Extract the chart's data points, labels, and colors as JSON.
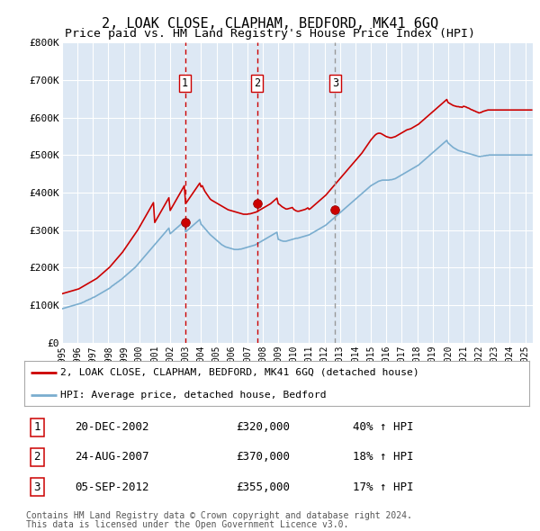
{
  "title": "2, LOAK CLOSE, CLAPHAM, BEDFORD, MK41 6GQ",
  "subtitle": "Price paid vs. HM Land Registry's House Price Index (HPI)",
  "legend_line1": "2, LOAK CLOSE, CLAPHAM, BEDFORD, MK41 6GQ (detached house)",
  "legend_line2": "HPI: Average price, detached house, Bedford",
  "footer_line1": "Contains HM Land Registry data © Crown copyright and database right 2024.",
  "footer_line2": "This data is licensed under the Open Government Licence v3.0.",
  "sales": [
    {
      "num": 1,
      "date": "20-DEC-2002",
      "date_x": 2002.96,
      "price": 320000,
      "pct": "40%",
      "dir": "↑",
      "vline_color": "#cc0000",
      "vline_style": "--"
    },
    {
      "num": 2,
      "date": "24-AUG-2007",
      "date_x": 2007.64,
      "price": 370000,
      "pct": "18%",
      "dir": "↑",
      "vline_color": "#cc0000",
      "vline_style": "--"
    },
    {
      "num": 3,
      "date": "05-SEP-2012",
      "date_x": 2012.68,
      "price": 355000,
      "pct": "17%",
      "dir": "↑",
      "vline_color": "#999999",
      "vline_style": "--"
    }
  ],
  "ylim": [
    0,
    800000
  ],
  "xlim_start": 1995.0,
  "xlim_end": 2025.5,
  "yticks": [
    0,
    100000,
    200000,
    300000,
    400000,
    500000,
    600000,
    700000,
    800000
  ],
  "ytick_labels": [
    "£0",
    "£100K",
    "£200K",
    "£300K",
    "£400K",
    "£500K",
    "£600K",
    "£700K",
    "£800K"
  ],
  "red_color": "#cc0000",
  "blue_color": "#7aadcf",
  "bg_color": "#dde8f4",
  "grid_color": "#ffffff",
  "title_fontsize": 11,
  "subtitle_fontsize": 9.5,
  "axis_fontsize": 8,
  "red_monthly": {
    "start_year": 1995,
    "start_month": 1,
    "values": [
      130000,
      131000,
      132000,
      133000,
      134000,
      135000,
      136000,
      137000,
      138000,
      139000,
      140000,
      141000,
      142000,
      143000,
      145000,
      147000,
      149000,
      151000,
      153000,
      155000,
      157000,
      159000,
      161000,
      163000,
      165000,
      167000,
      169000,
      171000,
      174000,
      177000,
      180000,
      183000,
      186000,
      189000,
      192000,
      195000,
      198000,
      201000,
      205000,
      209000,
      213000,
      217000,
      221000,
      225000,
      229000,
      233000,
      237000,
      241000,
      246000,
      251000,
      256000,
      261000,
      266000,
      271000,
      276000,
      281000,
      286000,
      291000,
      296000,
      301000,
      307000,
      313000,
      319000,
      325000,
      331000,
      337000,
      343000,
      349000,
      355000,
      361000,
      367000,
      373000,
      320000,
      326000,
      332000,
      338000,
      344000,
      350000,
      356000,
      362000,
      368000,
      374000,
      380000,
      386000,
      352000,
      358000,
      364000,
      370000,
      376000,
      382000,
      388000,
      394000,
      400000,
      406000,
      412000,
      418000,
      370000,
      375000,
      380000,
      385000,
      390000,
      395000,
      400000,
      405000,
      410000,
      415000,
      420000,
      425000,
      415000,
      418000,
      410000,
      403000,
      398000,
      393000,
      388000,
      383000,
      380000,
      378000,
      376000,
      374000,
      372000,
      370000,
      368000,
      366000,
      364000,
      362000,
      360000,
      358000,
      356000,
      354000,
      353000,
      352000,
      351000,
      350000,
      349000,
      348000,
      347000,
      346000,
      345000,
      344000,
      343000,
      342000,
      342000,
      342000,
      342000,
      343000,
      343000,
      344000,
      345000,
      346000,
      347000,
      348000,
      350000,
      352000,
      354000,
      356000,
      358000,
      360000,
      362000,
      364000,
      366000,
      368000,
      370000,
      373000,
      376000,
      379000,
      382000,
      385000,
      370000,
      368000,
      365000,
      362000,
      360000,
      358000,
      356000,
      356000,
      357000,
      358000,
      359000,
      360000,
      355000,
      353000,
      351000,
      350000,
      350000,
      351000,
      352000,
      353000,
      354000,
      355000,
      357000,
      359000,
      355000,
      357000,
      360000,
      363000,
      366000,
      369000,
      372000,
      375000,
      378000,
      381000,
      384000,
      387000,
      390000,
      393000,
      397000,
      401000,
      405000,
      409000,
      413000,
      417000,
      421000,
      425000,
      429000,
      433000,
      437000,
      441000,
      445000,
      449000,
      453000,
      457000,
      461000,
      465000,
      469000,
      473000,
      477000,
      481000,
      485000,
      489000,
      493000,
      497000,
      501000,
      505000,
      510000,
      515000,
      520000,
      525000,
      530000,
      535000,
      540000,
      544000,
      548000,
      552000,
      555000,
      557000,
      558000,
      558000,
      557000,
      555000,
      553000,
      551000,
      549000,
      548000,
      547000,
      546000,
      546000,
      547000,
      548000,
      549000,
      551000,
      553000,
      555000,
      557000,
      559000,
      561000,
      563000,
      565000,
      567000,
      568000,
      569000,
      570000,
      572000,
      574000,
      576000,
      578000,
      580000,
      582000,
      585000,
      588000,
      591000,
      594000,
      597000,
      600000,
      603000,
      606000,
      609000,
      612000,
      615000,
      618000,
      621000,
      624000,
      627000,
      630000,
      633000,
      636000,
      639000,
      642000,
      645000,
      648000,
      640000,
      638000,
      636000,
      634000,
      632000,
      631000,
      630000,
      629000,
      629000,
      628000,
      628000,
      627000,
      630000,
      629000,
      628000,
      626000,
      625000,
      623000,
      621000,
      620000,
      618000,
      617000,
      615000,
      614000,
      612000,
      613000,
      614000,
      616000,
      617000,
      618000,
      619000,
      620000,
      620000,
      620000,
      620000,
      620000,
      620000,
      620000,
      620000,
      620000,
      620000,
      620000,
      620000,
      620000,
      620000,
      620000,
      620000,
      620000,
      620000,
      620000,
      620000,
      620000,
      620000,
      620000,
      620000,
      620000,
      620000,
      620000,
      620000,
      620000,
      620000,
      620000,
      620000,
      620000,
      620000,
      620000
    ]
  },
  "blue_monthly": {
    "start_year": 1995,
    "start_month": 1,
    "values": [
      90000,
      91000,
      92000,
      93000,
      94000,
      95000,
      96000,
      97000,
      98000,
      99000,
      100000,
      101000,
      102000,
      103000,
      104000,
      105000,
      107000,
      108000,
      110000,
      112000,
      113000,
      115000,
      116000,
      118000,
      120000,
      121000,
      123000,
      125000,
      127000,
      129000,
      131000,
      133000,
      135000,
      137000,
      139000,
      141000,
      143000,
      145000,
      148000,
      151000,
      153000,
      156000,
      158000,
      161000,
      163000,
      166000,
      168000,
      171000,
      174000,
      177000,
      180000,
      183000,
      186000,
      189000,
      192000,
      195000,
      198000,
      201000,
      205000,
      209000,
      213000,
      217000,
      221000,
      225000,
      229000,
      233000,
      237000,
      241000,
      245000,
      249000,
      253000,
      257000,
      261000,
      265000,
      269000,
      273000,
      277000,
      281000,
      285000,
      289000,
      293000,
      297000,
      301000,
      305000,
      290000,
      293000,
      296000,
      299000,
      302000,
      305000,
      308000,
      311000,
      314000,
      317000,
      320000,
      323000,
      295000,
      298000,
      301000,
      304000,
      307000,
      310000,
      313000,
      316000,
      319000,
      322000,
      325000,
      328000,
      315000,
      312000,
      308000,
      304000,
      300000,
      296000,
      292000,
      288000,
      285000,
      282000,
      279000,
      276000,
      273000,
      270000,
      267000,
      264000,
      261000,
      259000,
      257000,
      255000,
      254000,
      253000,
      252000,
      251000,
      250000,
      249000,
      248000,
      248000,
      248000,
      248000,
      249000,
      249000,
      250000,
      251000,
      252000,
      253000,
      254000,
      255000,
      256000,
      257000,
      258000,
      259000,
      260000,
      262000,
      264000,
      266000,
      268000,
      270000,
      272000,
      274000,
      276000,
      278000,
      280000,
      282000,
      284000,
      286000,
      288000,
      290000,
      292000,
      294000,
      275000,
      274000,
      272000,
      271000,
      270000,
      270000,
      270000,
      271000,
      272000,
      273000,
      274000,
      275000,
      276000,
      277000,
      278000,
      278000,
      279000,
      280000,
      281000,
      282000,
      283000,
      284000,
      285000,
      286000,
      287000,
      289000,
      291000,
      293000,
      295000,
      297000,
      299000,
      301000,
      303000,
      305000,
      307000,
      309000,
      311000,
      313000,
      316000,
      319000,
      322000,
      325000,
      328000,
      331000,
      334000,
      337000,
      340000,
      343000,
      346000,
      349000,
      352000,
      355000,
      358000,
      361000,
      364000,
      367000,
      370000,
      373000,
      376000,
      379000,
      382000,
      385000,
      388000,
      391000,
      394000,
      397000,
      400000,
      403000,
      406000,
      409000,
      412000,
      415000,
      418000,
      420000,
      422000,
      424000,
      426000,
      428000,
      430000,
      431000,
      432000,
      433000,
      433000,
      433000,
      433000,
      433000,
      433000,
      434000,
      434000,
      435000,
      436000,
      437000,
      439000,
      441000,
      443000,
      445000,
      447000,
      449000,
      451000,
      453000,
      455000,
      457000,
      459000,
      461000,
      463000,
      465000,
      467000,
      469000,
      471000,
      473000,
      476000,
      479000,
      482000,
      485000,
      488000,
      491000,
      494000,
      497000,
      500000,
      503000,
      506000,
      509000,
      512000,
      515000,
      518000,
      521000,
      524000,
      527000,
      530000,
      533000,
      536000,
      539000,
      532000,
      529000,
      526000,
      523000,
      520000,
      518000,
      516000,
      514000,
      512000,
      511000,
      510000,
      509000,
      508000,
      507000,
      506000,
      505000,
      504000,
      503000,
      502000,
      501000,
      500000,
      499000,
      498000,
      497000,
      496000,
      496000,
      497000,
      497000,
      498000,
      498000,
      499000,
      499000,
      500000,
      500000,
      500000,
      500000,
      500000,
      500000,
      500000,
      500000,
      500000,
      500000,
      500000,
      500000,
      500000,
      500000,
      500000,
      500000,
      500000,
      500000,
      500000,
      500000,
      500000,
      500000,
      500000,
      500000,
      500000,
      500000,
      500000,
      500000,
      500000,
      500000,
      500000,
      500000,
      500000,
      500000
    ]
  }
}
